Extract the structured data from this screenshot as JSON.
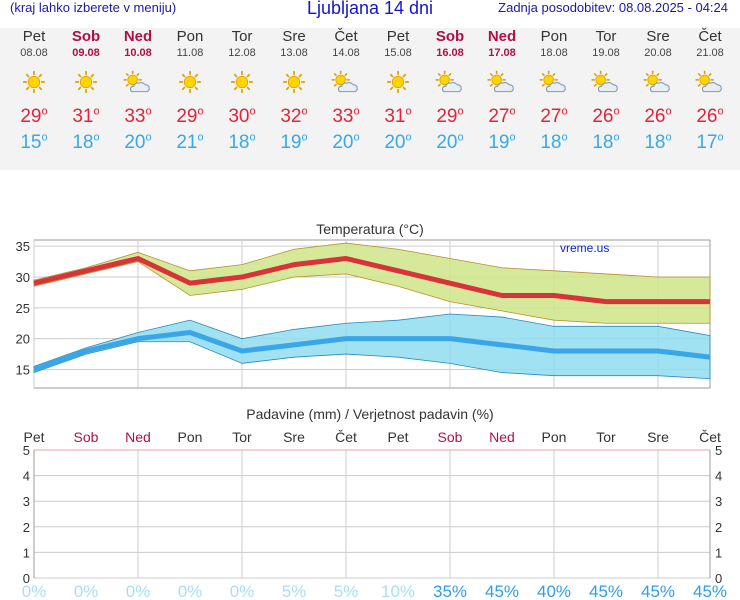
{
  "header": {
    "left_note": "(kraj lahko izberete v meniju)",
    "title": "Ljubljana 14 dni",
    "updated": "Zadnja posodobitev: 08.08.2025 - 04:24"
  },
  "days": [
    {
      "day": "Pet",
      "date": "08.08",
      "weekend": false,
      "icon": "sun-icon",
      "tmax": "29",
      "tmin": "15"
    },
    {
      "day": "Sob",
      "date": "09.08",
      "weekend": true,
      "icon": "sun-icon",
      "tmax": "31",
      "tmin": "18"
    },
    {
      "day": "Ned",
      "date": "10.08",
      "weekend": true,
      "icon": "sun-cloud-icon",
      "tmax": "33",
      "tmin": "20"
    },
    {
      "day": "Pon",
      "date": "11.08",
      "weekend": false,
      "icon": "sun-icon",
      "tmax": "29",
      "tmin": "21"
    },
    {
      "day": "Tor",
      "date": "12.08",
      "weekend": false,
      "icon": "sun-icon",
      "tmax": "30",
      "tmin": "18"
    },
    {
      "day": "Sre",
      "date": "13.08",
      "weekend": false,
      "icon": "sun-icon",
      "tmax": "32",
      "tmin": "19"
    },
    {
      "day": "Čet",
      "date": "14.08",
      "weekend": false,
      "icon": "sun-cloud-icon",
      "tmax": "33",
      "tmin": "20"
    },
    {
      "day": "Pet",
      "date": "15.08",
      "weekend": false,
      "icon": "sun-icon",
      "tmax": "31",
      "tmin": "20"
    },
    {
      "day": "Sob",
      "date": "16.08",
      "weekend": true,
      "icon": "sun-cloud-icon",
      "tmax": "29",
      "tmin": "20"
    },
    {
      "day": "Ned",
      "date": "17.08",
      "weekend": true,
      "icon": "sun-cloud-icon",
      "tmax": "27",
      "tmin": "19"
    },
    {
      "day": "Pon",
      "date": "18.08",
      "weekend": false,
      "icon": "sun-cloud-icon",
      "tmax": "27",
      "tmin": "18"
    },
    {
      "day": "Tor",
      "date": "19.08",
      "weekend": false,
      "icon": "sun-cloud-icon",
      "tmax": "26",
      "tmin": "18"
    },
    {
      "day": "Sre",
      "date": "20.08",
      "weekend": false,
      "icon": "sun-cloud-icon",
      "tmax": "26",
      "tmin": "18"
    },
    {
      "day": "Čet",
      "date": "21.08",
      "weekend": false,
      "icon": "sun-cloud-icon",
      "tmax": "26",
      "tmin": "17"
    }
  ],
  "colors": {
    "max_line": "#d8323a",
    "max_band": "#cfe58a",
    "min_line": "#3aa6e8",
    "min_band": "#8fdcf0",
    "weekend": "#b0104a",
    "grid": "#cccccc"
  },
  "chart_data": [
    {
      "type": "line",
      "title": "Temperatura (°C)",
      "watermark": "vreme.us",
      "ylim": [
        12,
        36
      ],
      "yticks": [
        15,
        20,
        25,
        30,
        35
      ],
      "grid": true,
      "series": [
        {
          "values": [
            29,
            31,
            33,
            29,
            30,
            32,
            33,
            31,
            29,
            27,
            27,
            26,
            26,
            26
          ],
          "band_low": [
            28.5,
            30.5,
            32.5,
            27,
            28,
            30,
            30.5,
            28.5,
            26,
            24.5,
            23,
            22.5,
            22.5,
            22.5
          ],
          "band_high": [
            29.5,
            31.5,
            34,
            31,
            32,
            34.5,
            35.5,
            34.5,
            33,
            31.5,
            31,
            30.5,
            30,
            30
          ]
        },
        {
          "values": [
            15,
            18,
            20,
            21,
            18,
            19,
            20,
            20,
            20,
            19,
            18,
            18,
            18,
            17
          ],
          "band_low": [
            14.5,
            17.5,
            19.5,
            19.5,
            16,
            17,
            17.5,
            17,
            16,
            14.5,
            14,
            14,
            14,
            13.5
          ],
          "band_high": [
            15.5,
            18.5,
            21,
            23,
            20,
            21.5,
            22.5,
            23,
            24,
            23.5,
            22,
            22,
            22,
            20.5
          ]
        }
      ]
    },
    {
      "type": "bar",
      "title": "Padavine (mm) / Verjetnost padavin (%)",
      "categories": [
        "Pet",
        "Sob",
        "Ned",
        "Pon",
        "Tor",
        "Sre",
        "Čet",
        "Pet",
        "Sob",
        "Ned",
        "Pon",
        "Tor",
        "Sre",
        "Čet"
      ],
      "weekend": [
        false,
        true,
        true,
        false,
        false,
        false,
        false,
        false,
        true,
        true,
        false,
        false,
        false,
        false
      ],
      "ylim": [
        0,
        5
      ],
      "yticks": [
        0,
        1,
        2,
        3,
        4,
        5
      ],
      "values": [
        0,
        0,
        0,
        0,
        0,
        0,
        0,
        0,
        0,
        0,
        0,
        0,
        0,
        0
      ],
      "probability": [
        "0%",
        "0%",
        "0%",
        "0%",
        "0%",
        "5%",
        "5%",
        "10%",
        "35%",
        "45%",
        "40%",
        "45%",
        "45%",
        "45%"
      ]
    }
  ]
}
